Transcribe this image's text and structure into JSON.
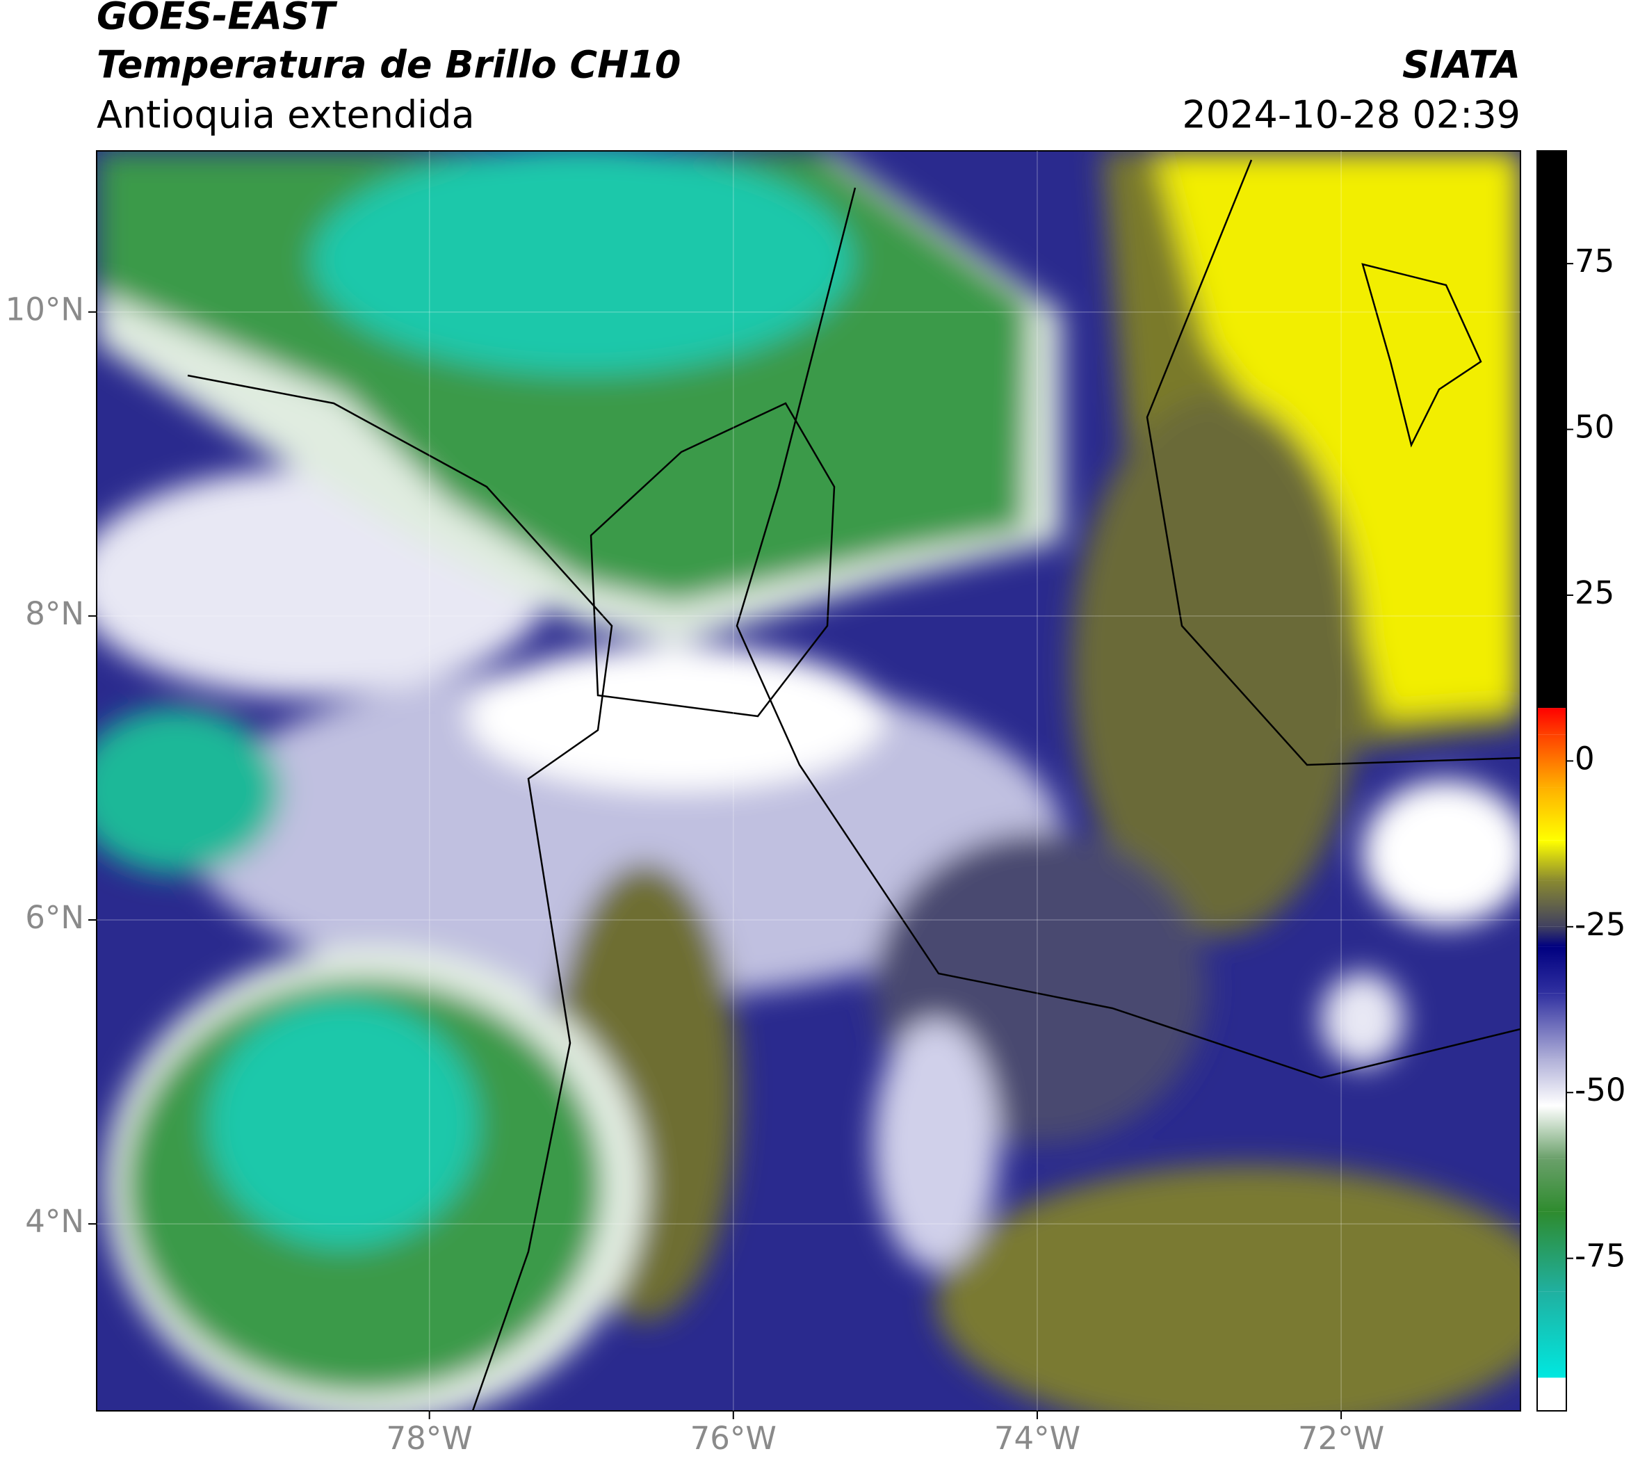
{
  "header": {
    "title": "GOES-EAST",
    "subtitle": "Temperatura de Brillo CH10",
    "region": "Antioquia extendida",
    "source": "SIATA",
    "datetime": "2024-10-28 02:39"
  },
  "map": {
    "xlim": [
      -80.19,
      -70.82
    ],
    "ylim": [
      2.77,
      11.06
    ],
    "xticks": [
      {
        "value": -78,
        "label": "78°W"
      },
      {
        "value": -76,
        "label": "76°W"
      },
      {
        "value": -74,
        "label": "74°W"
      },
      {
        "value": -72,
        "label": "72°W"
      }
    ],
    "yticks": [
      {
        "value": 4,
        "label": "4°N"
      },
      {
        "value": 6,
        "label": "6°N"
      },
      {
        "value": 8,
        "label": "8°N"
      },
      {
        "value": 10,
        "label": "10°N"
      }
    ],
    "grid": true
  },
  "colorbar": {
    "lim": [
      -98,
      92
    ],
    "ticks": [
      -75,
      -50,
      -25,
      0,
      25,
      50,
      75
    ],
    "stops": [
      {
        "value": -98,
        "color": "#ffffff"
      },
      {
        "value": -93,
        "color": "#ffffff"
      },
      {
        "value": -93,
        "color": "#00e8e0"
      },
      {
        "value": -80,
        "color": "#20b0a0"
      },
      {
        "value": -68,
        "color": "#2e8b2e"
      },
      {
        "value": -60,
        "color": "#6aa06a"
      },
      {
        "value": -52,
        "color": "#ffffff"
      },
      {
        "value": -45,
        "color": "#b0b0d8"
      },
      {
        "value": -35,
        "color": "#3030a0"
      },
      {
        "value": -28,
        "color": "#000080"
      },
      {
        "value": -25,
        "color": "#404060"
      },
      {
        "value": -18,
        "color": "#8a8a30"
      },
      {
        "value": -12,
        "color": "#ffff00"
      },
      {
        "value": -4,
        "color": "#ffb000"
      },
      {
        "value": 4,
        "color": "#ff4000"
      },
      {
        "value": 8,
        "color": "#ff0000"
      },
      {
        "value": 8,
        "color": "#000000"
      },
      {
        "value": 92,
        "color": "#000000"
      }
    ]
  }
}
